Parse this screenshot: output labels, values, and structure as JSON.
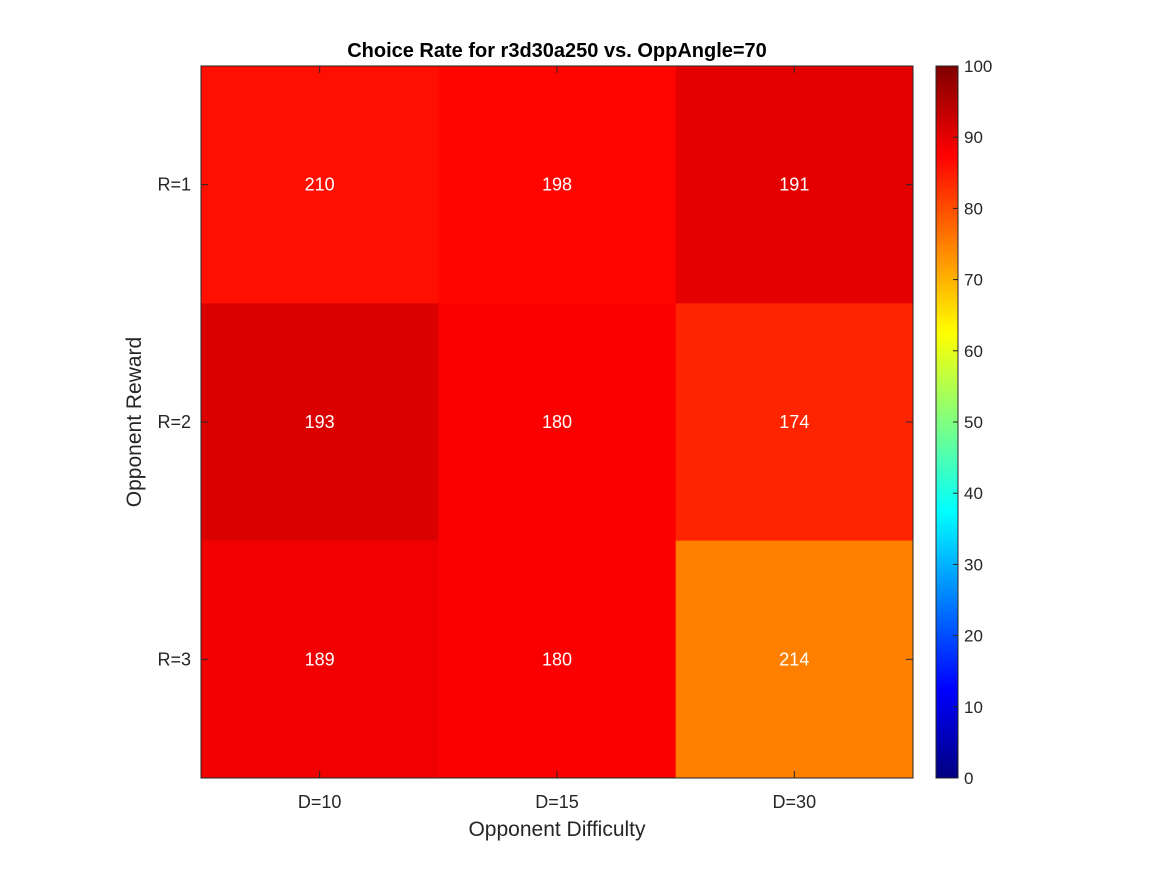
{
  "chart_data": {
    "type": "heatmap",
    "title": "Choice Rate for r3d30a250 vs. OppAngle=70",
    "xlabel": "Opponent Difficulty",
    "ylabel": "Opponent Reward",
    "x_categories": [
      "D=10",
      "D=15",
      "D=30"
    ],
    "y_categories": [
      "R=1",
      "R=2",
      "R=3"
    ],
    "values": [
      [
        86,
        87,
        90
      ],
      [
        91,
        88,
        84
      ],
      [
        89,
        88,
        75
      ]
    ],
    "cell_labels": [
      [
        "210",
        "198",
        "191"
      ],
      [
        "193",
        "180",
        "174"
      ],
      [
        "189",
        "180",
        "214"
      ]
    ],
    "colorbar": {
      "colormap": "jet",
      "range": [
        0,
        100
      ],
      "ticks": [
        "0",
        "10",
        "20",
        "30",
        "40",
        "50",
        "60",
        "70",
        "80",
        "90",
        "100"
      ],
      "position": "right"
    },
    "grid": false
  }
}
